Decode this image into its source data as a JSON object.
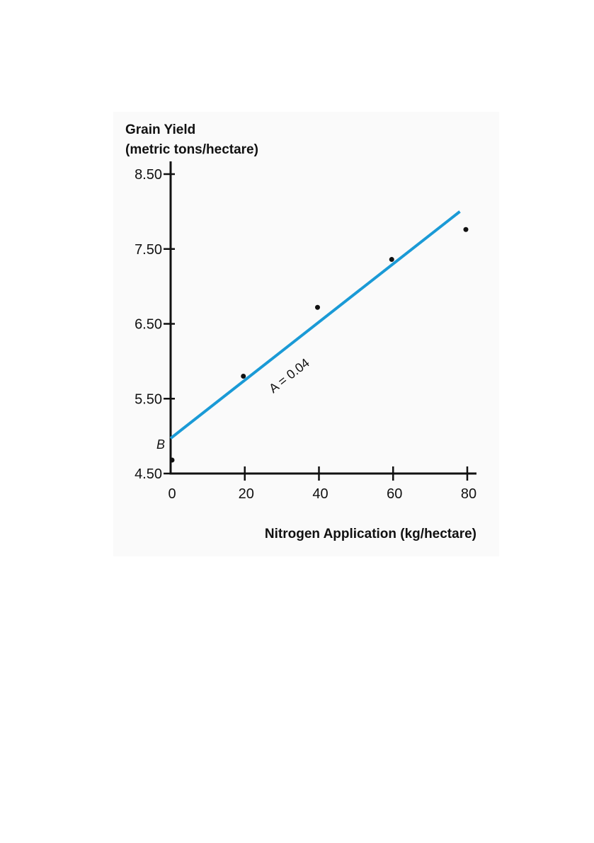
{
  "chart_data": {
    "type": "scatter",
    "title": "",
    "ylabel_line1": "Grain Yield",
    "ylabel_line2": "(metric tons/hectare)",
    "xlabel": "Nitrogen Application (kg/hectare)",
    "xlim": [
      0,
      80
    ],
    "ylim": [
      4.5,
      8.5
    ],
    "x_ticks": [
      0,
      20,
      40,
      60,
      80
    ],
    "x_tick_labels": [
      "0",
      "20",
      "40",
      "60",
      "80"
    ],
    "y_ticks": [
      4.5,
      5.5,
      6.5,
      7.5,
      8.5
    ],
    "y_tick_labels": [
      "4.50",
      "5.50",
      "6.50",
      "7.50",
      "8.50"
    ],
    "grid": false,
    "points": [
      {
        "x": 0,
        "y": 4.68
      },
      {
        "x": 20,
        "y": 5.8
      },
      {
        "x": 40,
        "y": 6.72
      },
      {
        "x": 60,
        "y": 7.36
      },
      {
        "x": 80,
        "y": 7.76
      }
    ],
    "fit_line": {
      "x": [
        0,
        78
      ],
      "y": [
        4.97,
        8.0
      ],
      "label": "A = 0.04",
      "color": "#1a9ad6"
    },
    "intercept_label": "B"
  }
}
